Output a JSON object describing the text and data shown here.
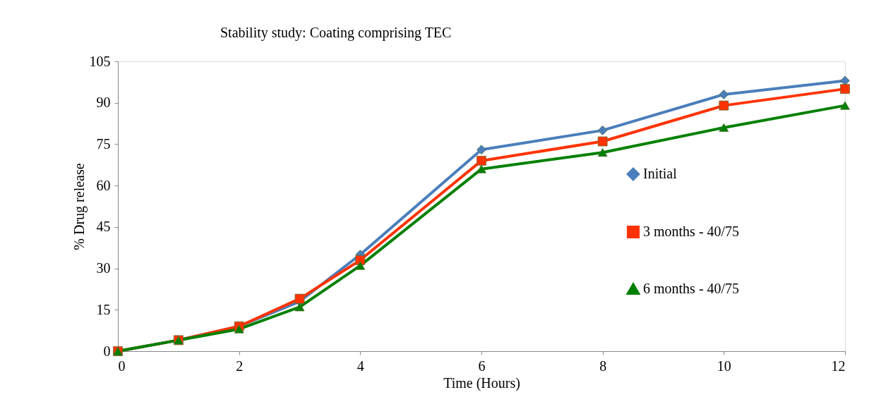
{
  "chart_data": {
    "type": "line",
    "title": "Stability study: Coating comprising TEC",
    "xlabel": "Time (Hours)",
    "ylabel": "% Drug release",
    "x": [
      0,
      1,
      2,
      3,
      4,
      6,
      8,
      10,
      12
    ],
    "series": [
      {
        "name": "Initial",
        "color": "#4a7ebb",
        "marker": "diamond",
        "values": [
          0,
          4,
          9,
          18,
          35,
          73,
          80,
          93,
          98
        ]
      },
      {
        "name": "3 months - 40/75",
        "color": "#ff3300",
        "marker": "square",
        "values": [
          0,
          4,
          9,
          19,
          33,
          69,
          76,
          89,
          95
        ]
      },
      {
        "name": "6 months - 40/75",
        "color": "#008000",
        "marker": "triangle",
        "values": [
          0,
          4,
          8,
          16,
          31,
          66,
          72,
          81,
          89
        ]
      }
    ],
    "xlim": [
      0,
      12
    ],
    "xticks": [
      0,
      2,
      4,
      6,
      8,
      10,
      12
    ],
    "ylim": [
      0,
      105
    ],
    "yticks": [
      0,
      15,
      30,
      45,
      60,
      75,
      90,
      105
    ],
    "grid": false,
    "legend": "right",
    "line_style": "solid"
  }
}
